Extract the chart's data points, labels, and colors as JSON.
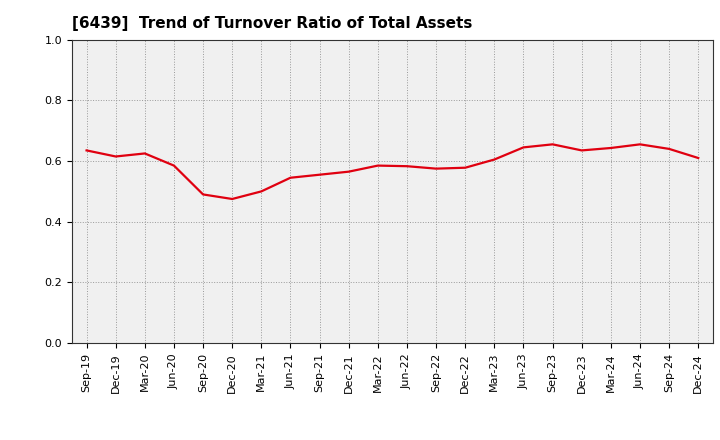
{
  "title": "[6439]  Trend of Turnover Ratio of Total Assets",
  "x_labels": [
    "Sep-19",
    "Dec-19",
    "Mar-20",
    "Jun-20",
    "Sep-20",
    "Dec-20",
    "Mar-21",
    "Jun-21",
    "Sep-21",
    "Dec-21",
    "Mar-22",
    "Jun-22",
    "Sep-22",
    "Dec-22",
    "Mar-23",
    "Jun-23",
    "Sep-23",
    "Dec-23",
    "Mar-24",
    "Jun-24",
    "Sep-24",
    "Dec-24"
  ],
  "values": [
    0.635,
    0.615,
    0.625,
    0.585,
    0.49,
    0.475,
    0.5,
    0.545,
    0.555,
    0.565,
    0.585,
    0.583,
    0.575,
    0.578,
    0.605,
    0.645,
    0.655,
    0.635,
    0.643,
    0.655,
    0.64,
    0.61
  ],
  "line_color": "#e00010",
  "line_width": 1.6,
  "ylim": [
    0.0,
    1.0
  ],
  "yticks": [
    0.0,
    0.2,
    0.4,
    0.6,
    0.8,
    1.0
  ],
  "bg_color": "#f0f0f0",
  "plot_bg_color": "#f0f0f0",
  "grid_color": "#999999",
  "title_fontsize": 11,
  "tick_fontsize": 8
}
